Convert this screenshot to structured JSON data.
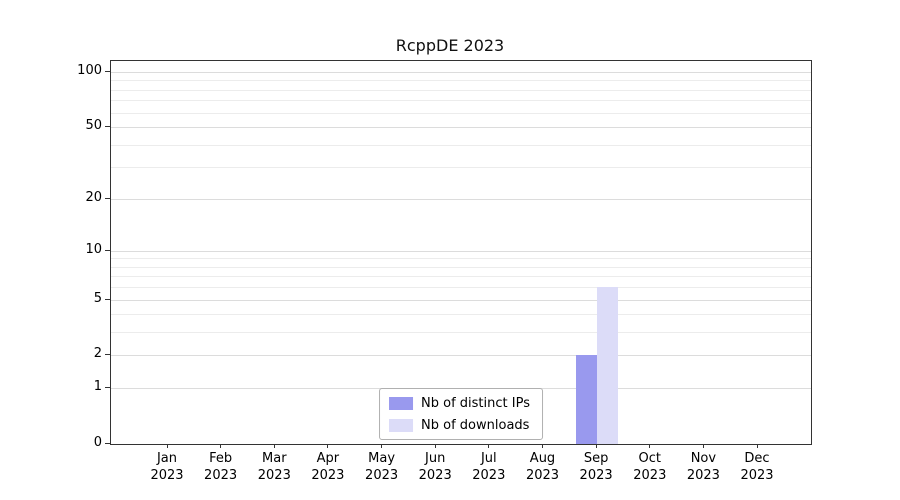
{
  "chart_data": {
    "type": "bar",
    "title": "RcppDE 2023",
    "categories": [
      "Jan 2023",
      "Feb 2023",
      "Mar 2023",
      "Apr 2023",
      "May 2023",
      "Jun 2023",
      "Jul 2023",
      "Aug 2023",
      "Sep 2023",
      "Oct 2023",
      "Nov 2023",
      "Dec 2023"
    ],
    "series": [
      {
        "name": "Nb of distinct IPs",
        "color": "#9999ee",
        "values": [
          0,
          0,
          0,
          0,
          0,
          0,
          0,
          0,
          2,
          0,
          0,
          0
        ]
      },
      {
        "name": "Nb of downloads",
        "color": "#dcdcf8",
        "values": [
          0,
          0,
          0,
          0,
          0,
          0,
          0,
          0,
          6,
          0,
          0,
          0
        ]
      }
    ],
    "y_axis": {
      "scale": "log10(value+1)",
      "tick_values": [
        0,
        1,
        2,
        5,
        10,
        20,
        50,
        100
      ],
      "minor_grid_values": [
        1,
        2,
        3,
        4,
        5,
        6,
        7,
        8,
        9,
        10,
        20,
        30,
        40,
        50,
        60,
        70,
        80,
        90,
        100
      ],
      "max": 100
    },
    "xlabel": "",
    "ylabel": "",
    "grid": true,
    "legend_position": "bottom-center",
    "colors": {
      "grid_major": "#dcdcdc",
      "grid_minor": "#ececec",
      "axis": "#333333",
      "text": "#000000",
      "background": "#ffffff"
    }
  }
}
